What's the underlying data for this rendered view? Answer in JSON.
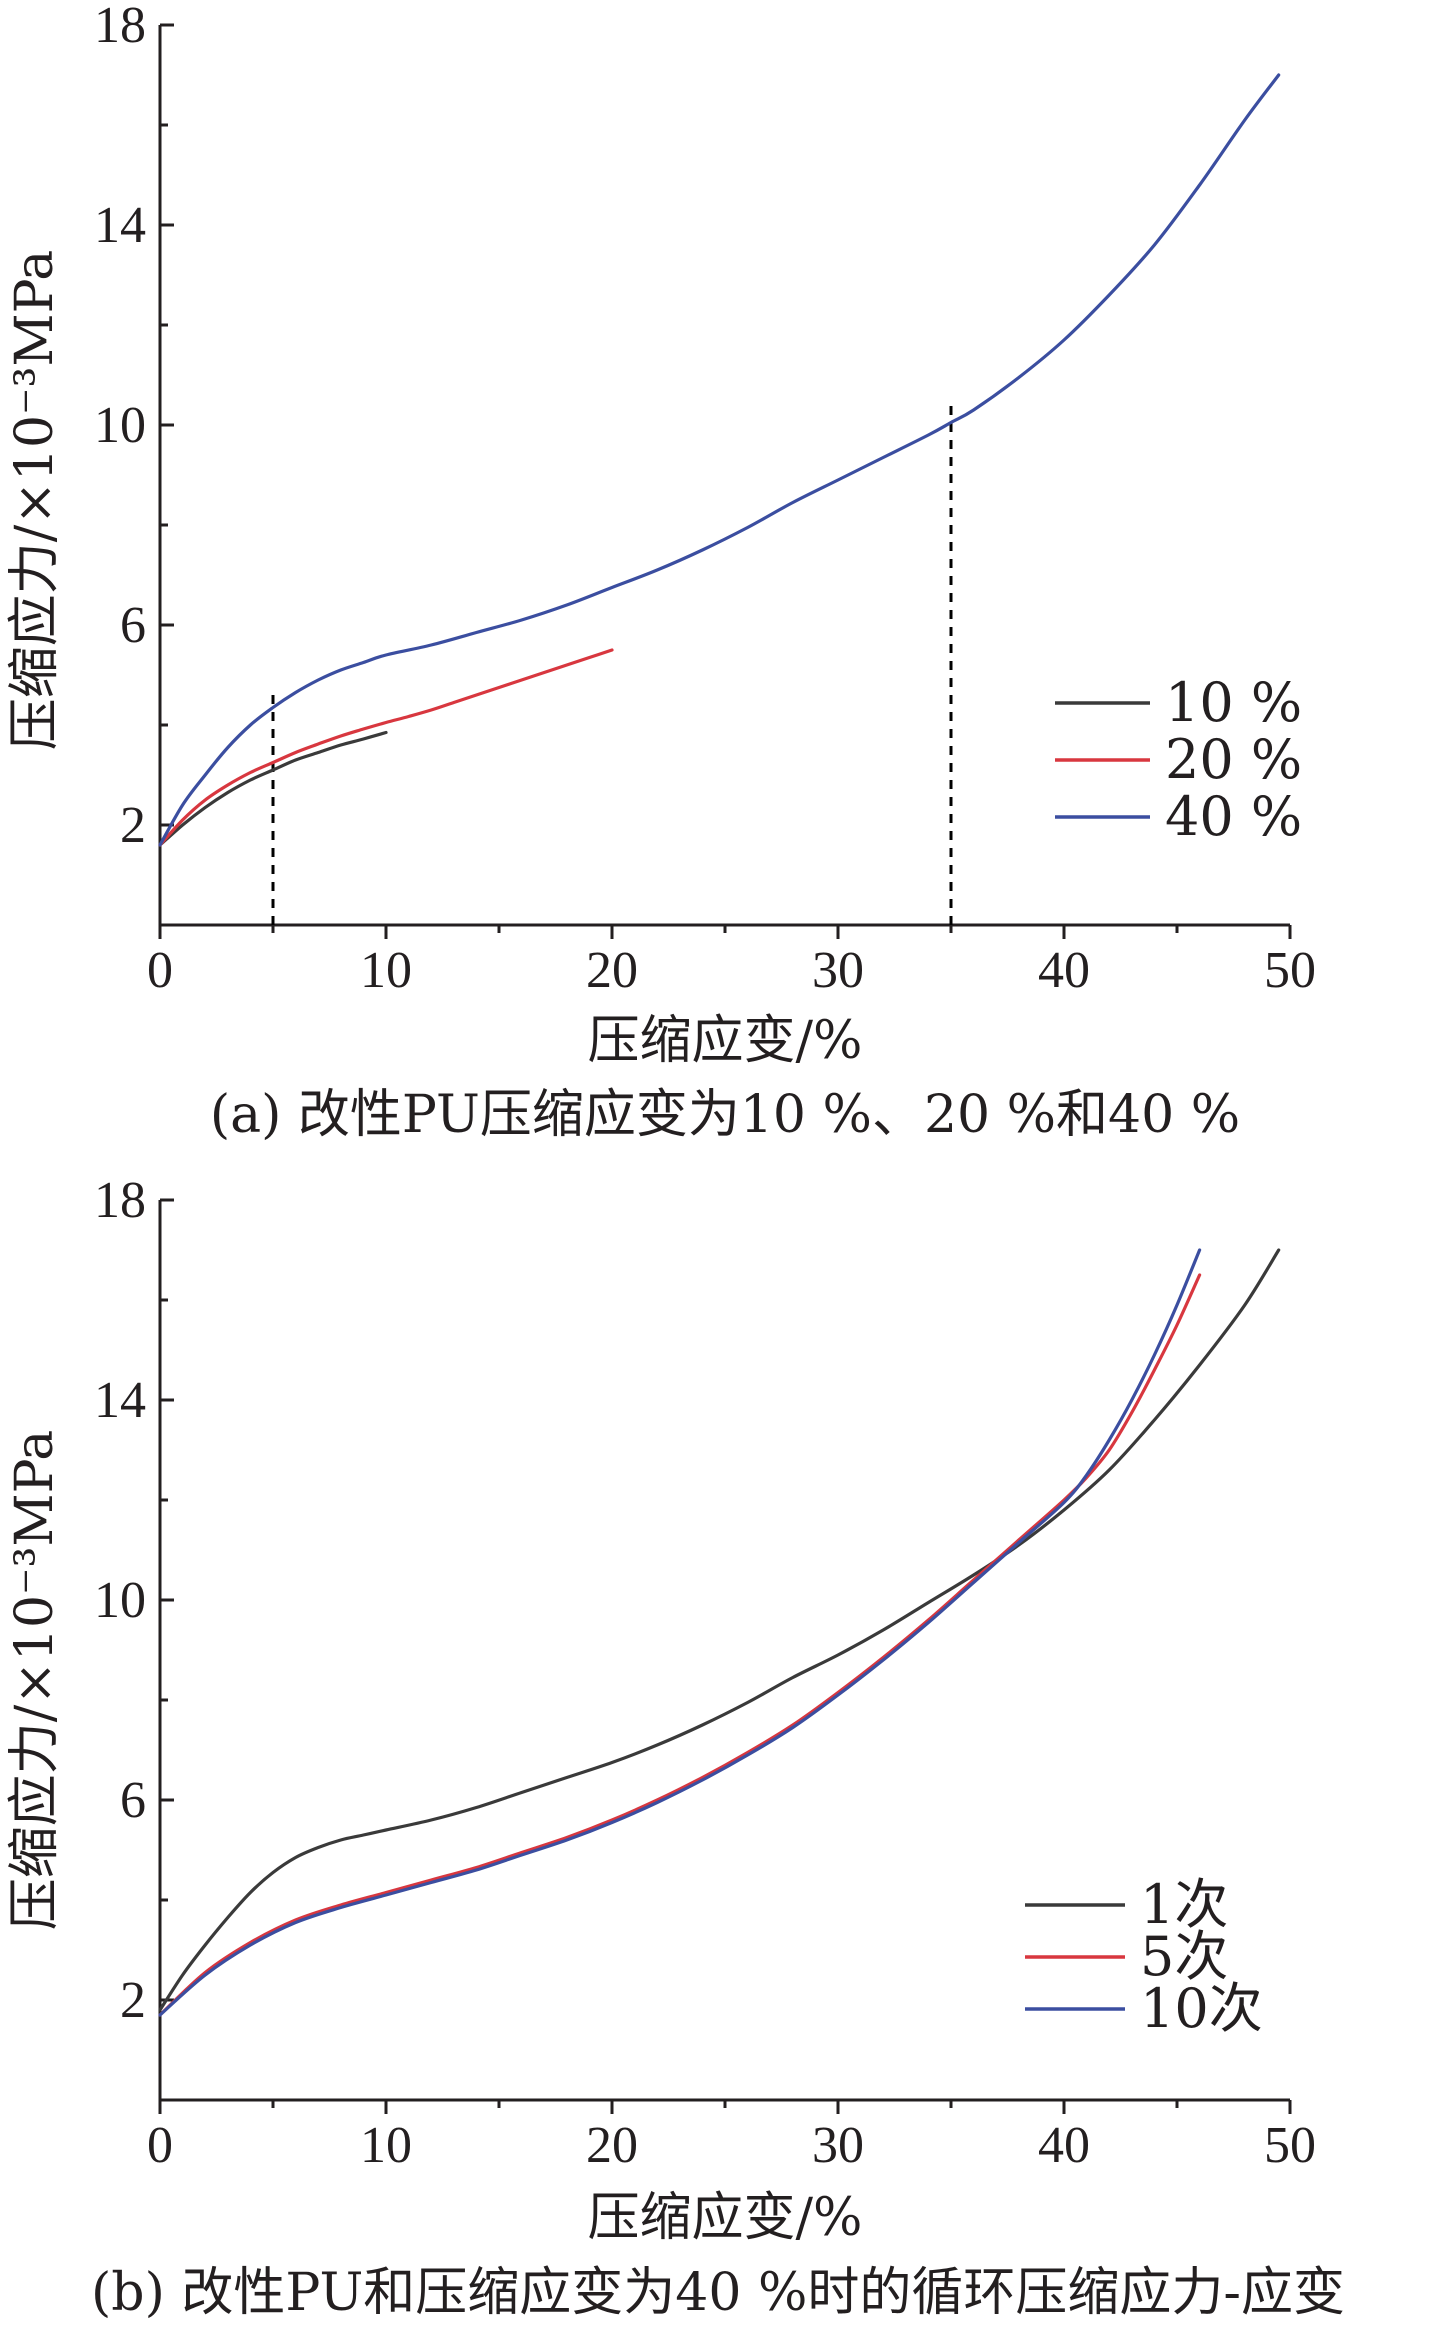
{
  "colors": {
    "axis": "#231f20",
    "dark": "#3a3a3a",
    "red": "#d8373f",
    "blue": "#3b4ea0"
  },
  "chart_data": [
    {
      "type": "line",
      "caption": "(a) 改性PU压缩应变为10 %、20 %和40 %",
      "xlabel": "压缩应变/%",
      "ylabel": "压缩应力/×10⁻³MPa",
      "xlim": [
        0,
        50
      ],
      "ylim": [
        0,
        18
      ],
      "xticks": [
        "0",
        "10",
        "20",
        "30",
        "40",
        "50"
      ],
      "yticks": [
        "2",
        "6",
        "10",
        "14",
        "18"
      ],
      "legend_position": "right",
      "reference_lines": [
        {
          "x": 5,
          "y_top": 4.6
        },
        {
          "x": 35,
          "y_top": 10.5
        }
      ],
      "series": [
        {
          "name": "10 %",
          "color": "#3a3a3a",
          "x": [
            0,
            1,
            2,
            3,
            4,
            5,
            6,
            7,
            8,
            9,
            10
          ],
          "y": [
            1.6,
            2.0,
            2.35,
            2.65,
            2.9,
            3.1,
            3.3,
            3.45,
            3.6,
            3.72,
            3.85
          ]
        },
        {
          "name": "20 %",
          "color": "#d8373f",
          "x": [
            0,
            1,
            2,
            3,
            4,
            5,
            6,
            7,
            8,
            9,
            10,
            11,
            12,
            13,
            14,
            15,
            16,
            17,
            18,
            19,
            20
          ],
          "y": [
            1.6,
            2.1,
            2.5,
            2.8,
            3.05,
            3.25,
            3.45,
            3.62,
            3.78,
            3.92,
            4.05,
            4.17,
            4.3,
            4.45,
            4.6,
            4.75,
            4.9,
            5.05,
            5.2,
            5.35,
            5.5
          ]
        },
        {
          "name": "40 %",
          "color": "#3b4ea0",
          "x": [
            0,
            1,
            2,
            3,
            4,
            5,
            6,
            7,
            8,
            9,
            10,
            12,
            14,
            16,
            18,
            20,
            22,
            24,
            26,
            28,
            30,
            32,
            34,
            35,
            36,
            38,
            40,
            42,
            44,
            46,
            48,
            49.5
          ],
          "y": [
            1.6,
            2.4,
            3.0,
            3.55,
            4.0,
            4.35,
            4.65,
            4.9,
            5.1,
            5.25,
            5.4,
            5.6,
            5.85,
            6.1,
            6.4,
            6.75,
            7.1,
            7.5,
            7.95,
            8.45,
            8.9,
            9.35,
            9.8,
            10.05,
            10.3,
            10.95,
            11.7,
            12.6,
            13.6,
            14.8,
            16.1,
            17.0
          ]
        }
      ]
    },
    {
      "type": "line",
      "caption": "(b) 改性PU和压缩应变为40 %时的循环压缩应力-应变",
      "xlabel": "压缩应变/%",
      "ylabel": "压缩应力/×10⁻³MPa",
      "xlim": [
        0,
        50
      ],
      "ylim": [
        0,
        18
      ],
      "xticks": [
        "0",
        "10",
        "20",
        "30",
        "40",
        "50"
      ],
      "yticks": [
        "2",
        "6",
        "10",
        "14",
        "18"
      ],
      "legend_position": "right",
      "series": [
        {
          "name": "1次",
          "color": "#3a3a3a",
          "x": [
            0,
            1,
            2,
            3,
            4,
            5,
            6,
            7,
            8,
            9,
            10,
            12,
            14,
            16,
            18,
            20,
            22,
            24,
            26,
            28,
            30,
            32,
            34,
            36,
            38,
            40,
            42,
            44,
            46,
            48,
            49.5
          ],
          "y": [
            1.8,
            2.5,
            3.1,
            3.65,
            4.15,
            4.55,
            4.85,
            5.05,
            5.2,
            5.3,
            5.4,
            5.6,
            5.85,
            6.15,
            6.45,
            6.75,
            7.1,
            7.5,
            7.95,
            8.45,
            8.9,
            9.4,
            9.95,
            10.5,
            11.1,
            11.8,
            12.6,
            13.6,
            14.7,
            15.9,
            17.0
          ]
        },
        {
          "name": "5次",
          "color": "#d8373f",
          "x": [
            0,
            2,
            4,
            6,
            8,
            10,
            12,
            14,
            16,
            18,
            20,
            22,
            24,
            26,
            28,
            30,
            32,
            34,
            36,
            38,
            40,
            41,
            42,
            43,
            44,
            45,
            46
          ],
          "y": [
            1.7,
            2.55,
            3.15,
            3.6,
            3.9,
            4.15,
            4.4,
            4.65,
            4.95,
            5.25,
            5.6,
            6.0,
            6.45,
            6.95,
            7.5,
            8.15,
            8.85,
            9.6,
            10.4,
            11.2,
            12.0,
            12.45,
            13.0,
            13.75,
            14.6,
            15.5,
            16.5
          ]
        },
        {
          "name": "10次",
          "color": "#3b4ea0",
          "x": [
            0,
            2,
            4,
            6,
            8,
            10,
            12,
            14,
            16,
            18,
            20,
            22,
            24,
            26,
            28,
            30,
            32,
            34,
            36,
            38,
            40,
            41,
            42,
            43,
            44,
            45,
            46
          ],
          "y": [
            1.7,
            2.5,
            3.1,
            3.55,
            3.85,
            4.1,
            4.35,
            4.6,
            4.9,
            5.2,
            5.55,
            5.95,
            6.4,
            6.9,
            7.45,
            8.1,
            8.8,
            9.55,
            10.35,
            11.15,
            11.95,
            12.5,
            13.2,
            14.0,
            14.9,
            15.9,
            17.0
          ]
        }
      ]
    }
  ]
}
